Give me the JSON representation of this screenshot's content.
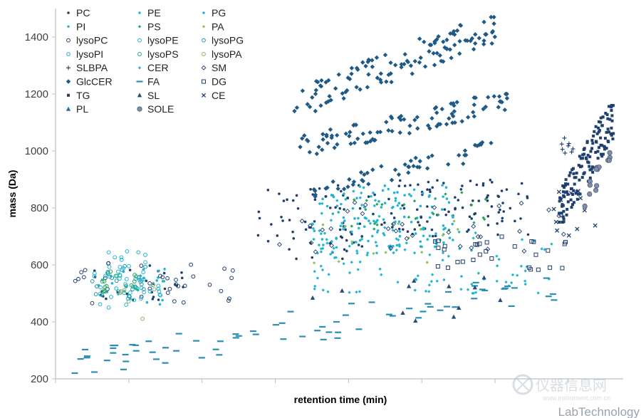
{
  "chart_data": {
    "type": "scatter",
    "title": "",
    "xlabel": "retention time (min)",
    "ylabel": "mass (Da)",
    "xlim": [
      0,
      31
    ],
    "ylim": [
      200,
      1500
    ],
    "yticks": [
      200,
      400,
      600,
      800,
      1000,
      1200,
      1400
    ],
    "x_ticks_unlabeled": true,
    "grid": false,
    "legend_position": "top-left",
    "legend_columns": 3,
    "colors": {
      "navy": "#1f3f6e",
      "steel": "#2a6c9e",
      "cyan": "#23b5d3",
      "teal": "#1e9aa8",
      "green": "#26a65b",
      "lightgreen": "#8fc45a",
      "olive": "#9ab06a",
      "grey": "#7f8fa6"
    },
    "series": [
      {
        "name": "PC",
        "marker": "dot",
        "color": "#1f3f6e",
        "clusters": [
          {
            "x": [
              11,
              18
            ],
            "y": [
              620,
              880
            ],
            "n": 70
          },
          {
            "x": [
              18,
              26
            ],
            "y": [
              700,
              900
            ],
            "n": 90
          },
          {
            "x": [
              2,
              7
            ],
            "y": [
              470,
              600
            ],
            "n": 25
          }
        ]
      },
      {
        "name": "PE",
        "marker": "dot",
        "color": "#23b5d3",
        "clusters": [
          {
            "x": [
              14,
              22
            ],
            "y": [
              660,
              880
            ],
            "n": 110
          },
          {
            "x": [
              2,
              6
            ],
            "y": [
              460,
              590
            ],
            "n": 25
          }
        ]
      },
      {
        "name": "PG",
        "marker": "diamond-small",
        "color": "#23b5d3",
        "clusters": [
          {
            "x": [
              14,
              19
            ],
            "y": [
              640,
              860
            ],
            "n": 35
          }
        ]
      },
      {
        "name": "PI",
        "marker": "diamond-small",
        "color": "#23b5d3",
        "clusters": [
          {
            "x": [
              14,
              26
            ],
            "y": [
              500,
              740
            ],
            "n": 60
          }
        ]
      },
      {
        "name": "PS",
        "marker": "diamond-small",
        "color": "#26a65b",
        "clusters": [
          {
            "x": [
              16,
              24
            ],
            "y": [
              720,
              860
            ],
            "n": 25
          }
        ]
      },
      {
        "name": "PA",
        "marker": "diamond-small",
        "color": "#8fc45a",
        "clusters": [
          {
            "x": [
              14,
              22
            ],
            "y": [
              600,
              760
            ],
            "n": 15
          }
        ]
      },
      {
        "name": "lysoPC",
        "marker": "ring",
        "color": "#1f3f6e",
        "clusters": [
          {
            "x": [
              1,
              10
            ],
            "y": [
              460,
              610
            ],
            "n": 35
          }
        ]
      },
      {
        "name": "lysoPE",
        "marker": "ring",
        "color": "#23b5d3",
        "clusters": [
          {
            "x": [
              2,
              6
            ],
            "y": [
              450,
              580
            ],
            "n": 35
          }
        ]
      },
      {
        "name": "lysoPG",
        "marker": "ring",
        "color": "#1e9aa8",
        "clusters": [
          {
            "x": [
              2,
              5
            ],
            "y": [
              480,
              600
            ],
            "n": 20
          }
        ]
      },
      {
        "name": "lysoPI",
        "marker": "ring",
        "color": "#23b5d3",
        "clusters": [
          {
            "x": [
              2.5,
              5
            ],
            "y": [
              540,
              660
            ],
            "n": 18
          }
        ]
      },
      {
        "name": "lysoPS",
        "marker": "ring",
        "color": "#26a65b",
        "clusters": [
          {
            "x": [
              2.5,
              4.5
            ],
            "y": [
              500,
              580
            ],
            "n": 15
          }
        ]
      },
      {
        "name": "lysoPA",
        "marker": "ring",
        "color": "#9ab06a",
        "clusters": [
          {
            "x": [
              3.5,
              5.5
            ],
            "y": [
              410,
              560
            ],
            "n": 6
          }
        ]
      },
      {
        "name": "SLBPA",
        "marker": "plus",
        "color": "#1f3f6e",
        "clusters": [
          {
            "x": [
              27.5,
              28.5
            ],
            "y": [
              990,
              1050
            ],
            "n": 8
          }
        ]
      },
      {
        "name": "CER",
        "marker": "diamond-small",
        "color": "#23b5d3",
        "clusters": [
          {
            "x": [
              14,
              28
            ],
            "y": [
              500,
              700
            ],
            "n": 40
          }
        ]
      },
      {
        "name": "SM",
        "marker": "diamond-open",
        "color": "#1f3f6e",
        "clusters": [
          {
            "x": [
              12,
              28
            ],
            "y": [
              640,
              820
            ],
            "n": 35
          }
        ]
      },
      {
        "name": "GlcCER",
        "marker": "diamond",
        "color": "#1e5a85",
        "bands": [
          {
            "x": [
              13,
              24
            ],
            "y": [
              1140,
              1470
            ],
            "n": 120
          },
          {
            "x": [
              13,
              25
            ],
            "y": [
              990,
              1200
            ],
            "n": 95
          },
          {
            "x": [
              14,
              24
            ],
            "y": [
              840,
              1030
            ],
            "n": 50
          }
        ]
      },
      {
        "name": "FA",
        "marker": "dash",
        "color": "#2a8fb5",
        "bands": [
          {
            "x": [
              1,
              27.5
            ],
            "y": [
              220,
              560
            ],
            "n": 75
          }
        ]
      },
      {
        "name": "DG",
        "marker": "square-open",
        "color": "#1f3f6e",
        "clusters": [
          {
            "x": [
              20,
              28
            ],
            "y": [
              580,
              700
            ],
            "n": 30
          }
        ]
      },
      {
        "name": "TG",
        "marker": "square",
        "color": "#1f3f6e",
        "bands": [
          {
            "x": [
              27.5,
              30.5
            ],
            "y": [
              750,
              1160
            ],
            "n": 140
          }
        ]
      },
      {
        "name": "SL",
        "marker": "triangle",
        "color": "#2a4a7a",
        "clusters": [
          {
            "x": [
              13,
              25
            ],
            "y": [
              390,
              560
            ],
            "n": 12
          }
        ]
      },
      {
        "name": "CE",
        "marker": "x",
        "color": "#1f3f6e",
        "clusters": [
          {
            "x": [
              27,
              30
            ],
            "y": [
              640,
              860
            ],
            "n": 12
          }
        ]
      },
      {
        "name": "PL",
        "marker": "triangle",
        "color": "#2a6c9e",
        "clusters": []
      },
      {
        "name": "SOLE",
        "marker": "circle-filled",
        "color": "#7f8fa6",
        "bands": [
          {
            "x": [
              28.8,
              30.3
            ],
            "y": [
              780,
              1020
            ],
            "n": 14
          }
        ]
      }
    ]
  },
  "watermark": {
    "brand": "仪器信息网",
    "url": "www.instrument.com.cn",
    "footer": "LabTechnology"
  }
}
